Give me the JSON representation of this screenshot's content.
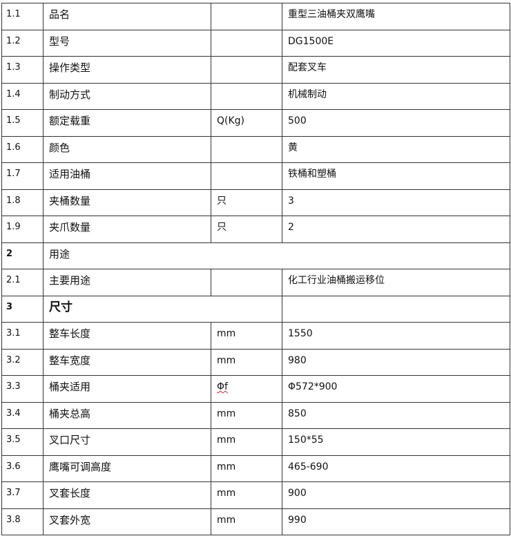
{
  "rows": [
    {
      "no": "1.1",
      "name": "品名",
      "unit": "",
      "value": "重型三油桶夹双鹰嘴"
    },
    {
      "no": "1.2",
      "name": "型号",
      "unit": "",
      "value": "DG1500E"
    },
    {
      "no": "1.3",
      "name": "操作类型",
      "unit": "",
      "value": "配套叉车"
    },
    {
      "no": "1.4",
      "name": "制动方式",
      "unit": "",
      "value": "机械制动"
    },
    {
      "no": "1.5",
      "name": "额定载重",
      "unit": "Q(Kg)",
      "value": "500"
    },
    {
      "no": "1.6",
      "name": "颜色",
      "unit": "",
      "value": "黄"
    },
    {
      "no": "1.7",
      "name": "适用油桶",
      "unit": "",
      "value": "铁桶和塑桶"
    },
    {
      "no": "1.8",
      "name": "夹桶数量",
      "unit": "只",
      "value": "3"
    },
    {
      "no": "1.9",
      "name": "夹爪数量",
      "unit": "只",
      "value": "2"
    },
    {
      "no": "2",
      "name": "用途",
      "type": "section"
    },
    {
      "no": "2.1",
      "name": "主要用途",
      "unit": "",
      "value": "化工行业油桶搬运移位"
    },
    {
      "no": "3",
      "name": "尺寸",
      "type": "section-bold"
    },
    {
      "no": "3.1",
      "name": "整车长度",
      "unit": "mm",
      "value": "1550"
    },
    {
      "no": "3.2",
      "name": "整车宽度",
      "unit": "mm",
      "value": "980"
    },
    {
      "no": "3.3",
      "name": "桶夹适用",
      "unit": "Φf",
      "value": "Φ572*900"
    },
    {
      "no": "3.4",
      "name": "桶夹总高",
      "unit": "mm",
      "value": "850"
    },
    {
      "no": "3.5",
      "name": "叉口尺寸",
      "unit": "mm",
      "value": "150*55"
    },
    {
      "no": "3.6",
      "name": "鹰嘴可调高度",
      "unit": "mm",
      "value": "465-690"
    },
    {
      "no": "3.7",
      "name": "叉套长度",
      "unit": "mm",
      "value": "900"
    },
    {
      "no": "3.8",
      "name": "叉套外宽",
      "unit": "mm",
      "value": "990"
    }
  ]
}
